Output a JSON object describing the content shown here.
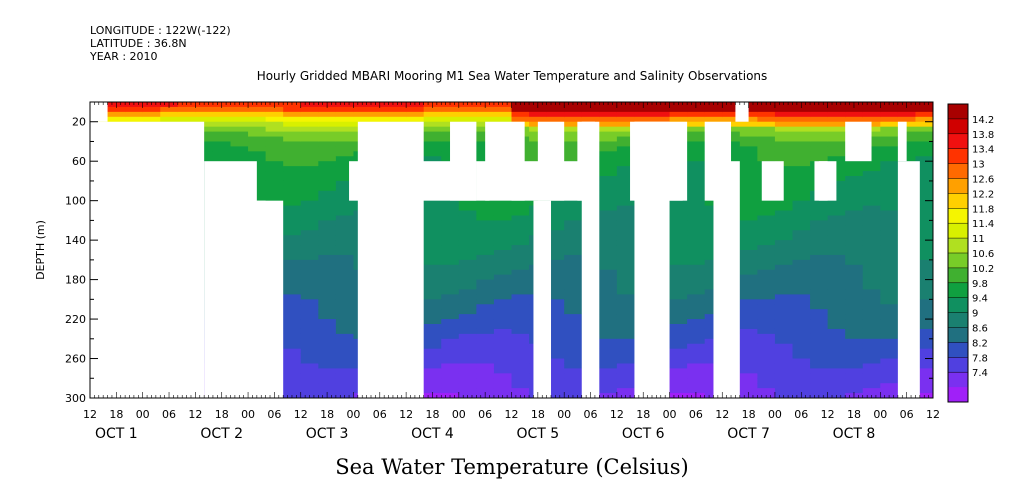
{
  "header": {
    "longitude": "LONGITUDE : 122W(-122)",
    "latitude": "LATITUDE : 36.8N",
    "year": "YEAR : 2010"
  },
  "chart_data": {
    "type": "heatmap",
    "title": "Hourly Gridded MBARI Mooring M1 Sea Water Temperature and Salinity Observations",
    "xlabel": "Sea Water Temperature (Celsius)",
    "ylabel": "DEPTH (m)",
    "ylim": [
      300,
      0
    ],
    "y_ticks": [
      "20",
      "60",
      "100",
      "140",
      "180",
      "220",
      "260",
      "300"
    ],
    "x_hour_ticks": [
      "12",
      "18",
      "00",
      "06",
      "12",
      "18",
      "00",
      "06",
      "12",
      "18",
      "00",
      "06",
      "12",
      "18",
      "00",
      "06",
      "12",
      "18",
      "00",
      "06",
      "12",
      "18",
      "00",
      "06",
      "12",
      "18",
      "00",
      "06",
      "12",
      "18",
      "00",
      "06",
      "12"
    ],
    "x_day_labels": [
      "OCT 1",
      "OCT 2",
      "OCT 3",
      "OCT 4",
      "OCT 5",
      "OCT 6",
      "OCT 7",
      "OCT 8"
    ],
    "x_range_hours": [
      12,
      204
    ],
    "colorbar": {
      "levels": [
        "14.2",
        "13.8",
        "13.4",
        "13",
        "12.6",
        "12.2",
        "11.8",
        "11.4",
        "11",
        "10.6",
        "10.2",
        "9.8",
        "9.4",
        "9",
        "8.6",
        "8.2",
        "7.8",
        "7.4"
      ],
      "colors": [
        "#a80000",
        "#d00000",
        "#f01010",
        "#ff3300",
        "#ff6a00",
        "#ffa000",
        "#ffd000",
        "#f5f500",
        "#d8f000",
        "#b0e020",
        "#78cc28",
        "#40b030",
        "#10a040",
        "#109060",
        "#1a8070",
        "#207080",
        "#3050c0",
        "#5040e0",
        "#7a30f0",
        "#a020f8"
      ]
    },
    "profile_depths_m": [
      5,
      20,
      30,
      45,
      60,
      80,
      100,
      140,
      180,
      220,
      260,
      300
    ],
    "profile_temps_c": [
      13.8,
      11.5,
      10.8,
      10.2,
      10.0,
      9.8,
      9.7,
      9.4,
      9.0,
      8.6,
      8.1,
      7.6
    ]
  }
}
